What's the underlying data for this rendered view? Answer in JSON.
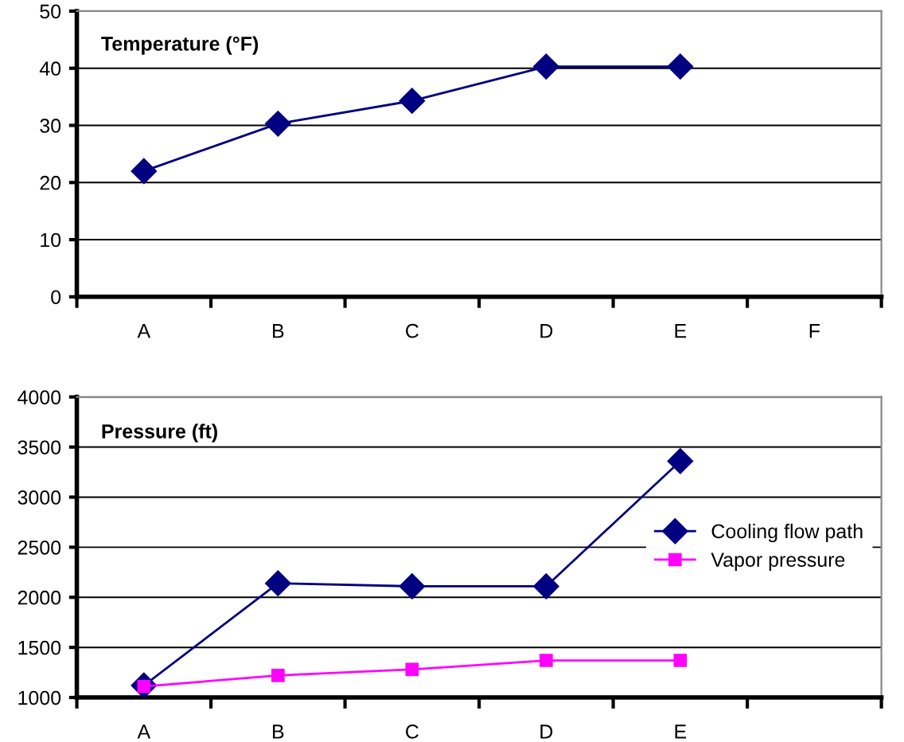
{
  "chart_data": [
    {
      "type": "line",
      "title": "Temperature (°F)",
      "categories": [
        "A",
        "B",
        "C",
        "D",
        "E",
        "F"
      ],
      "series": [
        {
          "color": "#000080",
          "values": [
            22,
            30.3,
            34.3,
            40.3,
            40.3,
            null
          ]
        }
      ],
      "ylim": [
        0,
        50
      ],
      "yticks": [
        0,
        10,
        20,
        30,
        40,
        50
      ],
      "grid": "y",
      "marker": "diamond",
      "legend": false
    },
    {
      "type": "line",
      "title": "Pressure (ft)",
      "categories": [
        "A",
        "B",
        "C",
        "D",
        "E",
        null
      ],
      "series": [
        {
          "name": "Cooling flow path",
          "color": "#000080",
          "marker": "diamond",
          "values": [
            1120,
            2140,
            2110,
            2110,
            3360,
            null
          ]
        },
        {
          "name": "Vapor pressure",
          "color": "#ff00ff",
          "marker": "square",
          "values": [
            1110,
            1220,
            1280,
            1370,
            1370,
            null
          ]
        }
      ],
      "ylim": [
        1000,
        4000
      ],
      "yticks": [
        1000,
        1500,
        2000,
        2500,
        3000,
        3500,
        4000
      ],
      "grid": "y",
      "legend": "right"
    }
  ]
}
